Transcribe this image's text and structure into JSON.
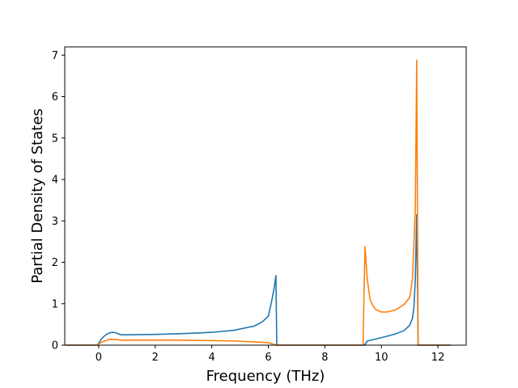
{
  "chart_data": {
    "type": "line",
    "title": "",
    "xlabel": "Frequency (THz)",
    "ylabel": "Partial Density of States",
    "xlim": [
      -1.2,
      13.0
    ],
    "ylim": [
      0,
      7.2
    ],
    "xticks": [
      0,
      2,
      4,
      6,
      8,
      10,
      12
    ],
    "yticks": [
      0,
      1,
      2,
      3,
      4,
      5,
      6,
      7
    ],
    "grid": false,
    "legend": "none",
    "series": [
      {
        "color": "#1f77b4",
        "x": [
          -1.15,
          -0.05,
          0.0,
          0.1,
          0.2,
          0.3,
          0.4,
          0.5,
          0.6,
          0.7,
          0.8,
          1.0,
          2.0,
          3.0,
          4.0,
          4.8,
          5.0,
          5.5,
          5.8,
          6.0,
          6.1,
          6.2,
          6.27,
          6.3,
          9.4,
          9.5,
          10.0,
          10.5,
          10.8,
          11.0,
          11.1,
          11.15,
          11.2,
          11.25,
          11.3,
          12.45
        ],
        "y": [
          0,
          0,
          0.05,
          0.15,
          0.22,
          0.27,
          0.3,
          0.31,
          0.3,
          0.27,
          0.25,
          0.25,
          0.26,
          0.28,
          0.31,
          0.36,
          0.39,
          0.46,
          0.57,
          0.7,
          1.0,
          1.35,
          1.68,
          0,
          0,
          0.1,
          0.18,
          0.27,
          0.35,
          0.48,
          0.65,
          0.9,
          1.6,
          3.15,
          0,
          0
        ]
      },
      {
        "color": "#ff7f0e",
        "x": [
          -1.15,
          -0.05,
          0.0,
          0.2,
          0.4,
          0.6,
          0.8,
          1.0,
          2.0,
          3.0,
          4.0,
          4.8,
          5.5,
          6.0,
          6.3,
          9.35,
          9.42,
          9.5,
          9.6,
          9.7,
          9.8,
          10.0,
          10.2,
          10.5,
          10.8,
          11.0,
          11.1,
          11.2,
          11.25,
          11.3,
          12.45
        ],
        "y": [
          0,
          0,
          0.03,
          0.1,
          0.14,
          0.14,
          0.12,
          0.12,
          0.12,
          0.12,
          0.11,
          0.1,
          0.08,
          0.06,
          0,
          0,
          2.38,
          1.6,
          1.1,
          0.95,
          0.86,
          0.8,
          0.8,
          0.85,
          0.98,
          1.15,
          1.6,
          3.3,
          6.88,
          0,
          0
        ]
      }
    ]
  }
}
